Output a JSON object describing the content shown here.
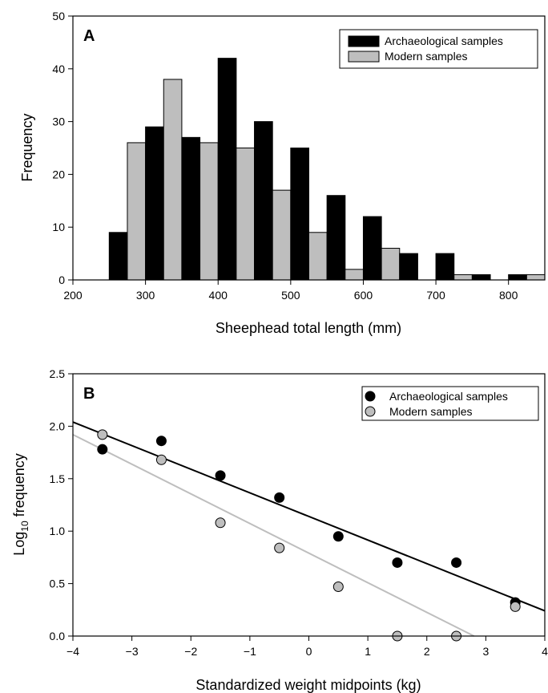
{
  "chart_data": [
    {
      "type": "bar",
      "panel_label": "A",
      "xlabel": "Sheephead total length (mm)",
      "ylabel": "Frequency",
      "xlim": [
        200,
        850
      ],
      "ylim": [
        0,
        50
      ],
      "xticks": [
        "200",
        "300",
        "400",
        "500",
        "600",
        "700",
        "800"
      ],
      "yticks": [
        "0",
        "10",
        "20",
        "30",
        "40",
        "50"
      ],
      "legend_position": "top-right",
      "bin_width": 50,
      "categories": [
        275,
        325,
        375,
        425,
        475,
        525,
        575,
        625,
        675,
        725,
        775,
        825
      ],
      "series": [
        {
          "name": "Archaeological samples",
          "color": "#000000",
          "values": [
            9,
            29,
            27,
            42,
            30,
            25,
            16,
            12,
            5,
            5,
            1,
            1
          ]
        },
        {
          "name": "Modern samples",
          "color": "#bebebe",
          "values": [
            26,
            38,
            26,
            25,
            17,
            9,
            2,
            6,
            0,
            1,
            0,
            1
          ]
        }
      ]
    },
    {
      "type": "scatter",
      "panel_label": "B",
      "xlabel": "Standardized weight midpoints (kg)",
      "ylabel_main": "Log",
      "ylabel_sub": "10",
      "ylabel_rest": " frequency",
      "xlim": [
        -4,
        4
      ],
      "ylim": [
        0,
        2.5
      ],
      "xticks": [
        "−4",
        "−3",
        "−2",
        "−1",
        "0",
        "1",
        "2",
        "3",
        "4"
      ],
      "yticks": [
        "0.0",
        "0.5",
        "1.0",
        "1.5",
        "2.0",
        "2.5"
      ],
      "legend_position": "top-right",
      "series": [
        {
          "name": "Archaeological samples",
          "color": "#000000",
          "x": [
            -3.5,
            -2.5,
            -1.5,
            -0.5,
            0.5,
            1.5,
            2.5,
            3.5
          ],
          "y": [
            1.78,
            1.86,
            1.53,
            1.32,
            0.95,
            0.7,
            0.7,
            0.32
          ],
          "fit": {
            "x": [
              -4,
              4
            ],
            "y": [
              2.04,
              0.24
            ]
          }
        },
        {
          "name": "Modern samples",
          "color": "#bebebe",
          "x": [
            -3.5,
            -2.5,
            -1.5,
            -0.5,
            0.5,
            1.5,
            2.5,
            3.5
          ],
          "y": [
            1.92,
            1.68,
            1.08,
            0.84,
            0.47,
            0.0,
            0.0,
            0.28
          ],
          "fit": {
            "x": [
              -4,
              2.8
            ],
            "y": [
              1.92,
              0.0
            ]
          }
        }
      ]
    }
  ]
}
